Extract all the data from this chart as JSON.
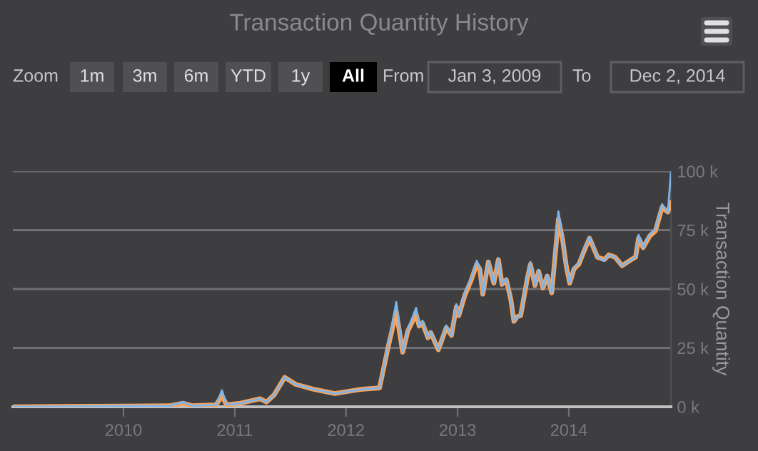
{
  "chart_data": {
    "type": "line",
    "title": "Transaction Quantity History",
    "ylabel": "Transaction Quantity",
    "annotations": [
      "Zoom",
      "1m",
      "3m",
      "6m",
      "YTD",
      "1y",
      "All",
      "From",
      "Jan 3, 2009",
      "To",
      "Dec 2, 2014"
    ],
    "xlim": [
      "2009-01-03",
      "2014-12-02"
    ],
    "xticks": [
      {
        "value": "2010-01-01",
        "label": "2010"
      },
      {
        "value": "2011-01-01",
        "label": "2011"
      },
      {
        "value": "2012-01-01",
        "label": "2012"
      },
      {
        "value": "2013-01-01",
        "label": "2013"
      },
      {
        "value": "2014-01-01",
        "label": "2014"
      }
    ],
    "ylim": [
      0,
      100000
    ],
    "yticks": [
      {
        "value": 0,
        "label": "0 k"
      },
      {
        "value": 25000,
        "label": "25 k"
      },
      {
        "value": 50000,
        "label": "50 k"
      },
      {
        "value": 75000,
        "label": "75 k"
      },
      {
        "value": 100000,
        "label": "100 k"
      }
    ],
    "grid": "y",
    "legend": false,
    "marker": "none",
    "line_style": "solid",
    "x": [
      "2009-01-03",
      "2009-06-01",
      "2010-01-01",
      "2010-06-01",
      "2010-07-15",
      "2010-08-15",
      "2010-11-01",
      "2010-11-20",
      "2010-12-05",
      "2011-01-20",
      "2011-03-25",
      "2011-04-15",
      "2011-05-10",
      "2011-06-14",
      "2011-07-20",
      "2011-09-15",
      "2011-11-25",
      "2012-02-20",
      "2012-04-20",
      "2012-05-18",
      "2012-06-14",
      "2012-07-05",
      "2012-07-22",
      "2012-08-18",
      "2012-08-28",
      "2012-09-08",
      "2012-09-26",
      "2012-10-05",
      "2012-10-30",
      "2012-11-25",
      "2012-12-12",
      "2012-12-28",
      "2013-01-05",
      "2013-01-25",
      "2013-02-14",
      "2013-03-05",
      "2013-03-15",
      "2013-03-25",
      "2013-04-12",
      "2013-04-30",
      "2013-05-15",
      "2013-05-27",
      "2013-06-10",
      "2013-06-25",
      "2013-07-05",
      "2013-07-16",
      "2013-07-27",
      "2013-08-18",
      "2013-08-28",
      "2013-09-12",
      "2013-09-24",
      "2013-10-08",
      "2013-10-22",
      "2013-11-06",
      "2013-11-28",
      "2013-12-12",
      "2013-12-24",
      "2014-01-04",
      "2014-01-18",
      "2014-02-03",
      "2014-02-18",
      "2014-03-10",
      "2014-04-05",
      "2014-04-28",
      "2014-05-12",
      "2014-06-02",
      "2014-06-25",
      "2014-07-25",
      "2014-08-08",
      "2014-08-18",
      "2014-09-02",
      "2014-09-24",
      "2014-10-12",
      "2014-11-03",
      "2014-11-22",
      "2014-12-02"
    ],
    "series": [
      {
        "color": "#7cb5ec",
        "values": [
          0,
          100,
          300,
          400,
          2000,
          400,
          800,
          7000,
          800,
          1500,
          3400,
          2000,
          5000,
          12500,
          9500,
          7500,
          5600,
          7400,
          8000,
          26000,
          44400,
          23200,
          33000,
          42000,
          34300,
          36500,
          29300,
          32000,
          24200,
          34500,
          30300,
          43500,
          38700,
          48500,
          54500,
          62000,
          58500,
          47800,
          62000,
          52500,
          63000,
          52000,
          54500,
          45400,
          36300,
          38300,
          38700,
          55500,
          61500,
          51500,
          58000,
          50400,
          56000,
          48400,
          83000,
          70600,
          59500,
          52500,
          59000,
          61000,
          66000,
          72000,
          63500,
          62000,
          64500,
          63500,
          59900,
          62500,
          63500,
          73000,
          67600,
          73500,
          75500,
          86000,
          82700,
          99400
        ]
      },
      {
        "color": "#f7a35c",
        "values": [
          0,
          100,
          300,
          400,
          1500,
          400,
          800,
          4700,
          800,
          1500,
          3400,
          2000,
          5000,
          12500,
          9500,
          7500,
          5600,
          7400,
          8000,
          25200,
          40300,
          23200,
          32300,
          39300,
          34300,
          35500,
          29300,
          31500,
          24200,
          33600,
          30300,
          42400,
          38700,
          47400,
          53500,
          60500,
          58500,
          47800,
          61500,
          52500,
          62500,
          52000,
          53900,
          45400,
          36300,
          38300,
          38700,
          54500,
          60500,
          51500,
          57500,
          50400,
          55500,
          48400,
          79700,
          70600,
          59500,
          52500,
          58500,
          60500,
          65500,
          71600,
          63500,
          62500,
          64500,
          63500,
          59900,
          62500,
          63500,
          71600,
          67600,
          72600,
          74600,
          84700,
          82700,
          86700
        ]
      }
    ]
  }
}
